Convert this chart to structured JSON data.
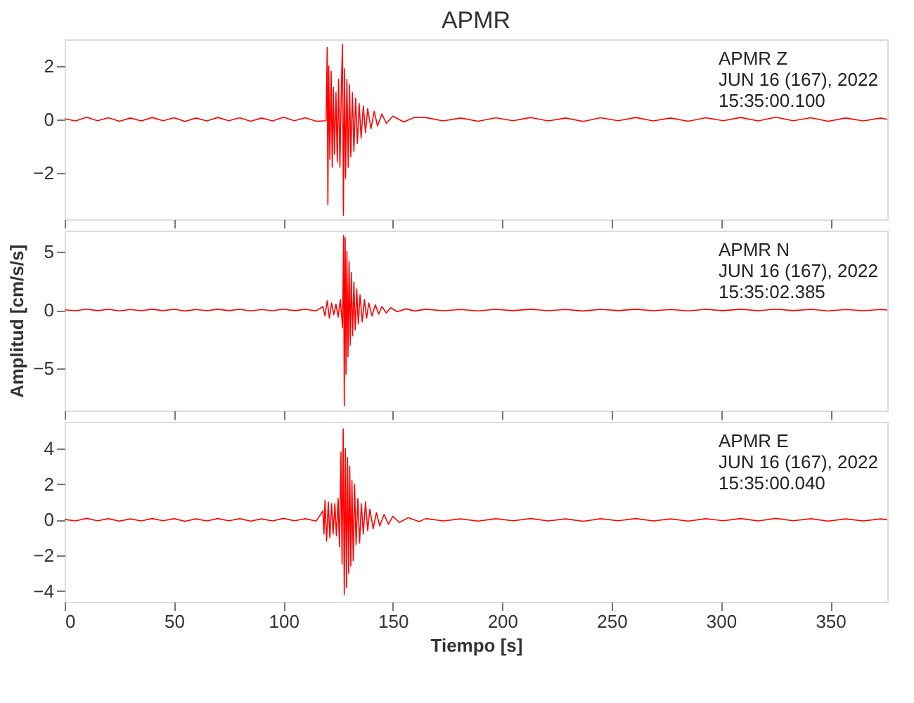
{
  "chart_data": [
    {
      "type": "line",
      "title": "APMR",
      "tick_labels": "y",
      "grid": false,
      "x": [
        0,
        5,
        10,
        15,
        20,
        25,
        30,
        35,
        40,
        45,
        50,
        55,
        60,
        65,
        70,
        75,
        80,
        85,
        90,
        95,
        100,
        105,
        110,
        115,
        119.5,
        120,
        120.3,
        120.7,
        121.2,
        121.8,
        122.3,
        122.8,
        123.3,
        124,
        124.6,
        125.2,
        125.8,
        126.5,
        127,
        127.4,
        127.9,
        128.4,
        129,
        129.6,
        130.2,
        130.8,
        131.5,
        132.2,
        133,
        133.8,
        134.6,
        135.5,
        136.5,
        137.5,
        138.5,
        140,
        141.5,
        143,
        145,
        147,
        150,
        155,
        160,
        165,
        173,
        181,
        189,
        197,
        205,
        213,
        221,
        229,
        237,
        245,
        253,
        261,
        269,
        277,
        285,
        293,
        301,
        309,
        317,
        325,
        333,
        341,
        349,
        357,
        365,
        373,
        376
      ],
      "series": [
        {
          "color": "#ff0000",
          "values": [
            0.02,
            -0.06,
            0.08,
            -0.05,
            0.06,
            -0.07,
            0.05,
            -0.06,
            0.07,
            -0.05,
            0.06,
            -0.08,
            0.05,
            -0.06,
            0.07,
            -0.05,
            0.06,
            -0.07,
            0.05,
            -0.06,
            0.08,
            -0.05,
            0.06,
            -0.07,
            -0.05,
            2.7,
            -3.2,
            2.0,
            -1.5,
            1.8,
            -1.8,
            1.2,
            -1.3,
            1.0,
            -1.6,
            1.5,
            -1.8,
            1.4,
            2.8,
            -3.6,
            1.9,
            -2.2,
            1.5,
            -1.8,
            1.3,
            -1.4,
            1.0,
            -1.2,
            0.8,
            -0.9,
            0.6,
            -0.7,
            0.5,
            -0.5,
            0.4,
            -0.35,
            0.3,
            -0.25,
            0.2,
            -0.15,
            0.12,
            -0.1,
            0.08,
            0.07,
            -0.06,
            0.05,
            -0.07,
            0.06,
            -0.05,
            0.07,
            -0.06,
            0.05,
            -0.08,
            0.06,
            -0.05,
            0.07,
            -0.06,
            0.05,
            -0.07,
            0.06,
            -0.05,
            0.07,
            -0.06,
            0.08,
            -0.05,
            0.06,
            -0.07,
            0.05,
            -0.06,
            0.05,
            0.0
          ]
        }
      ],
      "xlim": [
        0,
        376
      ],
      "xticks": [
        0,
        50,
        100,
        150,
        200,
        250,
        300,
        350
      ],
      "ylim": [
        -3.75,
        3.0
      ],
      "yticks": [
        -2,
        0,
        2
      ],
      "annotations": [
        "APMR   Z",
        "JUN 16 (167), 2022",
        "15:35:00.100"
      ]
    },
    {
      "type": "line",
      "ylabel": "Amplitud [cm/s/s]",
      "tick_labels": "y",
      "grid": false,
      "x": [
        0,
        5,
        10,
        15,
        20,
        25,
        30,
        35,
        40,
        45,
        50,
        55,
        60,
        65,
        70,
        75,
        80,
        85,
        90,
        95,
        100,
        105,
        110,
        115,
        118,
        119,
        120,
        121,
        122,
        123,
        124,
        125,
        126,
        127,
        127.5,
        127.8,
        128.2,
        128.6,
        129,
        129.5,
        130,
        130.5,
        131,
        131.6,
        132.2,
        132.8,
        133.5,
        134.2,
        135,
        136,
        137,
        138,
        139,
        140.5,
        142,
        143.5,
        145,
        147,
        149,
        152,
        156,
        160,
        165,
        173,
        181,
        189,
        197,
        205,
        213,
        221,
        229,
        237,
        245,
        253,
        261,
        269,
        277,
        285,
        293,
        301,
        309,
        317,
        325,
        333,
        341,
        349,
        357,
        365,
        373,
        376
      ],
      "series": [
        {
          "color": "#ff0000",
          "values": [
            0.02,
            -0.06,
            0.08,
            -0.05,
            0.06,
            -0.07,
            0.05,
            -0.06,
            0.07,
            -0.05,
            0.06,
            -0.08,
            0.05,
            -0.06,
            0.07,
            -0.05,
            0.06,
            -0.07,
            0.05,
            -0.06,
            0.08,
            -0.05,
            0.06,
            -0.07,
            0.3,
            -0.5,
            0.8,
            -0.7,
            0.6,
            -0.4,
            0.5,
            -0.6,
            0.9,
            -1.5,
            6.4,
            -8.2,
            6.2,
            -5.5,
            5.0,
            -4.0,
            4.2,
            -3.0,
            3.2,
            -2.2,
            2.4,
            -1.7,
            1.8,
            -1.2,
            1.3,
            -1.0,
            0.9,
            -0.7,
            0.6,
            -0.5,
            0.45,
            -0.35,
            0.3,
            -0.25,
            0.2,
            -0.15,
            0.1,
            -0.08,
            0.07,
            -0.06,
            0.05,
            -0.07,
            0.06,
            -0.05,
            0.07,
            -0.06,
            0.05,
            -0.08,
            0.06,
            -0.05,
            0.07,
            -0.06,
            0.05,
            -0.07,
            0.06,
            -0.05,
            0.07,
            -0.06,
            0.08,
            -0.05,
            0.06,
            -0.07,
            0.05,
            -0.06,
            0.05,
            0.0
          ]
        }
      ],
      "xlim": [
        0,
        376
      ],
      "xticks": [
        0,
        50,
        100,
        150,
        200,
        250,
        300,
        350
      ],
      "ylim": [
        -8.6,
        6.8
      ],
      "yticks": [
        -5,
        0,
        5
      ],
      "annotations": [
        "APMR   N",
        "JUN 16 (167), 2022",
        "15:35:02.385"
      ]
    },
    {
      "type": "line",
      "xlabel": "Tiempo [s]",
      "grid": false,
      "x": [
        0,
        5,
        10,
        15,
        20,
        25,
        30,
        35,
        40,
        45,
        50,
        55,
        60,
        65,
        70,
        75,
        80,
        85,
        90,
        95,
        100,
        105,
        110,
        115,
        118,
        118.5,
        119,
        119.7,
        120.5,
        121.2,
        122,
        122.7,
        123.5,
        124.2,
        125,
        125.6,
        126.3,
        126.8,
        127.3,
        127.8,
        128.3,
        128.8,
        129.3,
        129.8,
        130.3,
        130.8,
        131.3,
        131.9,
        132.5,
        133.2,
        134,
        134.8,
        135.6,
        136.5,
        137.5,
        138.5,
        139.5,
        141,
        142.5,
        144,
        146,
        148,
        150,
        153,
        157,
        162,
        165,
        173,
        181,
        189,
        197,
        205,
        213,
        221,
        229,
        237,
        245,
        253,
        261,
        269,
        277,
        285,
        293,
        301,
        309,
        317,
        325,
        333,
        341,
        349,
        357,
        365,
        373,
        376
      ],
      "series": [
        {
          "color": "#ff0000",
          "values": [
            0.02,
            -0.06,
            0.08,
            -0.05,
            0.06,
            -0.07,
            0.05,
            -0.06,
            0.07,
            -0.05,
            0.06,
            -0.08,
            0.05,
            -0.06,
            0.07,
            -0.05,
            0.06,
            -0.07,
            0.05,
            -0.06,
            0.08,
            -0.05,
            0.06,
            -0.07,
            0.5,
            -0.8,
            1.1,
            -1.2,
            1.0,
            -1.0,
            0.9,
            -0.8,
            0.9,
            -0.9,
            1.2,
            -1.5,
            3.8,
            -2.5,
            5.1,
            -4.2,
            4.0,
            -3.8,
            3.5,
            -3.0,
            3.0,
            -2.6,
            2.2,
            -2.3,
            2.0,
            -1.4,
            1.2,
            -1.3,
            0.9,
            -0.8,
            1.0,
            -0.6,
            0.6,
            -0.5,
            0.4,
            -0.35,
            0.3,
            -0.25,
            0.2,
            -0.15,
            0.12,
            -0.1,
            0.07,
            -0.06,
            0.05,
            -0.07,
            0.06,
            -0.05,
            0.07,
            -0.06,
            0.05,
            -0.08,
            0.06,
            -0.05,
            0.07,
            -0.06,
            0.05,
            -0.07,
            0.06,
            -0.05,
            0.07,
            -0.06,
            0.08,
            -0.05,
            0.06,
            -0.07,
            0.05,
            -0.06,
            0.05,
            0.0
          ]
        }
      ],
      "xlim": [
        0,
        376
      ],
      "xticks": [
        0,
        50,
        100,
        150,
        200,
        250,
        300,
        350
      ],
      "ylim": [
        -4.6,
        5.5
      ],
      "yticks": [
        -4,
        -2,
        0,
        2,
        4
      ],
      "annotations": [
        "APMR   E",
        "JUN 16 (167), 2022",
        "15:35:00.040"
      ]
    }
  ]
}
